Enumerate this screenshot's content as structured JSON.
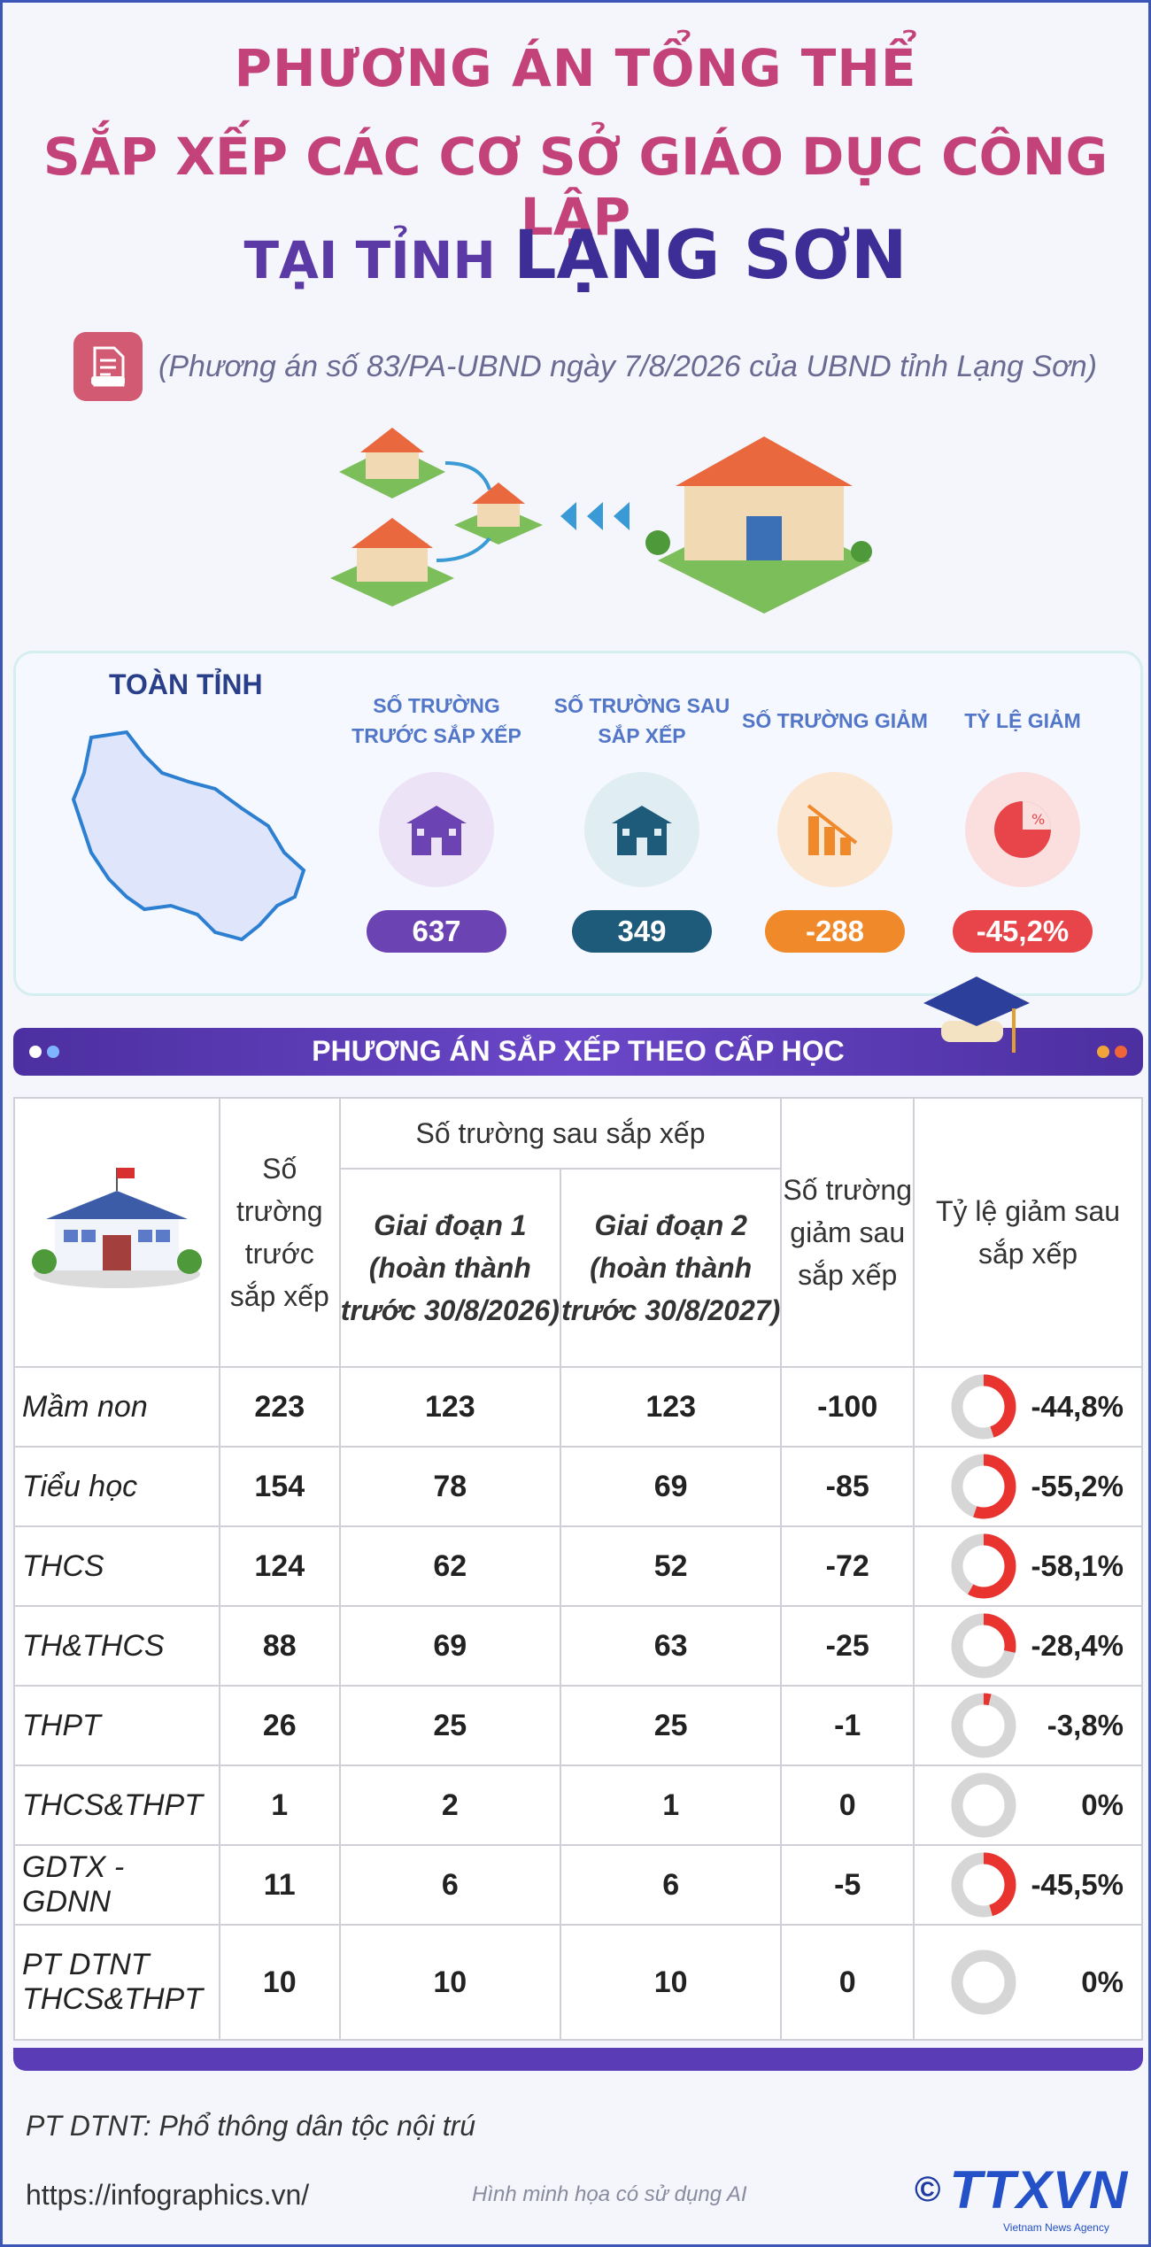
{
  "header": {
    "line1": "PHƯƠNG ÁN TỔNG THỂ",
    "line2": "SẮP XẾP CÁC CƠ SỞ GIÁO DỤC CÔNG LẬP",
    "line3_prefix": "TẠI TỈNH ",
    "line3_place": "LẠNG SƠN",
    "subtitle": "(Phương án số 83/PA-UBND ngày 7/8/2026 của UBND tỉnh Lạng Sơn)",
    "doc_icon": "document-icon"
  },
  "summary": {
    "region_label": "TOÀN TỈNH",
    "stats": [
      {
        "label": "SỐ TRƯỜNG TRƯỚC SẮP XẾP",
        "value": "637",
        "color": "#6b43b3",
        "bg": "#ece3f7",
        "icon": "school-icon"
      },
      {
        "label": "SỐ TRƯỜNG SAU SẮP XẾP",
        "value": "349",
        "color": "#1e5a7a",
        "bg": "#e0eef3",
        "icon": "school-icon"
      },
      {
        "label": "SỐ TRƯỜNG GIẢM",
        "value": "-288",
        "color": "#f0892a",
        "bg": "#fbe6d2",
        "icon": "bar-chart-down-icon"
      },
      {
        "label": "TỶ LỆ GIẢM",
        "value": "-45,2%",
        "color": "#e8454a",
        "bg": "#fbdede",
        "icon": "pie-percent-icon"
      }
    ]
  },
  "section_banner": "PHƯƠNG ÁN SẮP XẾP THEO CẤP HỌC",
  "table": {
    "h_before": "Số trường trước sắp xếp",
    "h_after": "Số trường sau sắp xếp",
    "h_phase1": "Giai đoạn 1 (hoàn thành trước 30/8/2026)",
    "h_phase2": "Giai đoạn 2 (hoàn thành trước 30/8/2027)",
    "h_reduced": "Số trường giảm sau sắp xếp",
    "h_rate": "Tỷ lệ giảm sau sắp xếp",
    "rows": [
      {
        "level": "Mầm non",
        "before": "223",
        "p1": "123",
        "p2": "123",
        "reduced": "-100",
        "rate": "-44,8%",
        "frac": 0.448
      },
      {
        "level": "Tiểu học",
        "before": "154",
        "p1": "78",
        "p2": "69",
        "reduced": "-85",
        "rate": "-55,2%",
        "frac": 0.552
      },
      {
        "level": "THCS",
        "before": "124",
        "p1": "62",
        "p2": "52",
        "reduced": "-72",
        "rate": "-58,1%",
        "frac": 0.581
      },
      {
        "level": "TH&THCS",
        "before": "88",
        "p1": "69",
        "p2": "63",
        "reduced": "-25",
        "rate": "-28,4%",
        "frac": 0.284
      },
      {
        "level": "THPT",
        "before": "26",
        "p1": "25",
        "p2": "25",
        "reduced": "-1",
        "rate": "-3,8%",
        "frac": 0.038
      },
      {
        "level": "THCS&THPT",
        "before": "1",
        "p1": "2",
        "p2": "1",
        "reduced": "0",
        "rate": "0%",
        "frac": 0
      },
      {
        "level": "GDTX - GDNN",
        "before": "11",
        "p1": "6",
        "p2": "6",
        "reduced": "-5",
        "rate": "-45,5%",
        "frac": 0.455
      },
      {
        "level": "PT DTNT THCS&THPT",
        "before": "10",
        "p1": "10",
        "p2": "10",
        "reduced": "0",
        "rate": "0%",
        "frac": 0
      }
    ]
  },
  "footer": {
    "note": "PT DTNT: Phổ thông dân tộc nội trú",
    "url": "https://infographics.vn/",
    "ai_note": "Hình minh họa có sử dụng AI",
    "copyright": "©",
    "logo_text": "TTXVN",
    "logo_sub": "Vietnam News Agency"
  },
  "colors": {
    "accent_pink": "#c4427a",
    "accent_purple": "#5b3aa6",
    "donut_red": "#e8332f",
    "donut_grey": "#d6d6d6"
  }
}
